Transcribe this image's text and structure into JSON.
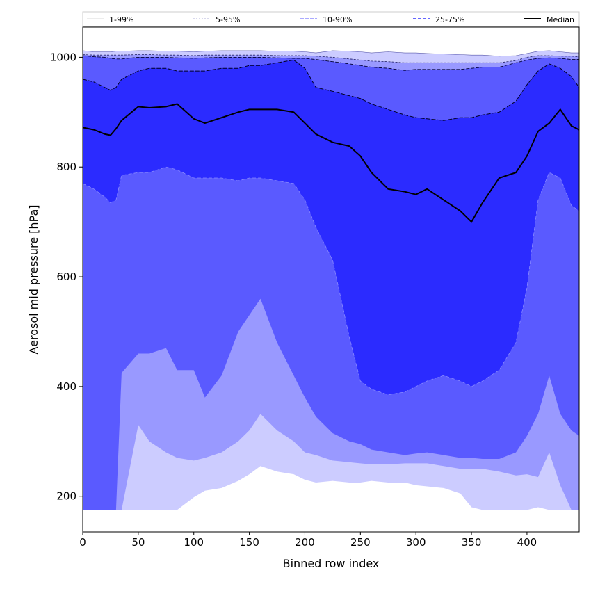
{
  "chart_data": {
    "type": "area",
    "xlabel": "Binned row index",
    "ylabel": "Aerosol mid pressure [hPa]",
    "xlim": [
      0,
      447
    ],
    "ylim": [
      135,
      1055
    ],
    "xticks": [
      0,
      50,
      100,
      150,
      200,
      250,
      300,
      350,
      400
    ],
    "yticks": [
      200,
      400,
      600,
      800,
      1000
    ],
    "grid": false,
    "legend_position": "top (horizontal strip above plot)",
    "colors": {
      "band_1_99": "#ccccff",
      "band_5_95": "#9999ff",
      "band_10_90": "#5a5aff",
      "band_25_75": "#2b2bff",
      "median": "#000000"
    },
    "x": [
      0,
      10,
      20,
      25,
      30,
      35,
      50,
      60,
      75,
      85,
      100,
      110,
      125,
      140,
      150,
      160,
      175,
      190,
      200,
      210,
      225,
      240,
      250,
      260,
      275,
      290,
      300,
      310,
      325,
      340,
      350,
      360,
      375,
      390,
      400,
      410,
      420,
      430,
      440,
      447
    ],
    "series": [
      {
        "name": "1-99%",
        "lower": [
          175,
          175,
          175,
          175,
          175,
          175,
          175,
          175,
          175,
          175,
          198,
          210,
          215,
          228,
          240,
          255,
          245,
          240,
          230,
          225,
          228,
          225,
          225,
          228,
          225,
          225,
          220,
          218,
          215,
          205,
          180,
          175,
          175,
          175,
          175,
          180,
          175,
          175,
          175,
          175
        ],
        "upper": [
          1012,
          1010,
          1010,
          1010,
          1011,
          1011,
          1012,
          1012,
          1011,
          1011,
          1010,
          1011,
          1012,
          1012,
          1012,
          1012,
          1011,
          1011,
          1010,
          1008,
          1012,
          1011,
          1010,
          1008,
          1010,
          1008,
          1008,
          1007,
          1006,
          1005,
          1004,
          1004,
          1002,
          1003,
          1007,
          1011,
          1012,
          1010,
          1008,
          1008
        ]
      },
      {
        "name": "5-95%",
        "lower": [
          175,
          175,
          175,
          175,
          175,
          175,
          330,
          300,
          280,
          270,
          265,
          270,
          280,
          300,
          320,
          350,
          320,
          300,
          280,
          275,
          265,
          262,
          260,
          258,
          258,
          260,
          260,
          260,
          255,
          250,
          250,
          250,
          245,
          238,
          240,
          235,
          280,
          220,
          175,
          175
        ],
        "upper": [
          1005,
          1004,
          1004,
          1004,
          1004,
          1004,
          1005,
          1005,
          1004,
          1004,
          1003,
          1004,
          1004,
          1004,
          1004,
          1004,
          1003,
          1003,
          1003,
          1002,
          1000,
          997,
          995,
          993,
          992,
          990,
          990,
          990,
          990,
          990,
          990,
          990,
          990,
          994,
          1000,
          1003,
          1003,
          1002,
          1002,
          1001
        ]
      },
      {
        "name": "10-90%",
        "lower": [
          175,
          175,
          175,
          175,
          175,
          425,
          460,
          460,
          470,
          430,
          430,
          380,
          420,
          500,
          530,
          560,
          480,
          420,
          380,
          345,
          315,
          300,
          295,
          285,
          280,
          275,
          278,
          280,
          275,
          270,
          270,
          268,
          268,
          280,
          310,
          350,
          420,
          350,
          320,
          310
        ],
        "upper": [
          1003,
          1001,
          1000,
          998,
          997,
          997,
          1000,
          1000,
          1000,
          999,
          998,
          999,
          1000,
          1000,
          1000,
          1000,
          999,
          998,
          998,
          996,
          992,
          988,
          985,
          982,
          980,
          976,
          978,
          978,
          978,
          978,
          980,
          982,
          982,
          990,
          995,
          998,
          999,
          998,
          996,
          996
        ]
      },
      {
        "name": "25-75%",
        "lower": [
          770,
          760,
          745,
          735,
          740,
          785,
          790,
          790,
          800,
          795,
          780,
          780,
          780,
          775,
          780,
          780,
          775,
          770,
          740,
          690,
          630,
          490,
          410,
          395,
          385,
          390,
          400,
          410,
          420,
          410,
          400,
          410,
          430,
          480,
          580,
          740,
          790,
          780,
          730,
          720
        ]
      },
      {
        "name": "Median",
        "values": [
          872,
          868,
          860,
          858,
          870,
          885,
          910,
          908,
          910,
          915,
          888,
          880,
          890,
          900,
          905,
          905,
          905,
          900,
          880,
          860,
          845,
          838,
          820,
          790,
          760,
          755,
          750,
          760,
          740,
          720,
          700,
          735,
          780,
          790,
          820,
          865,
          880,
          905,
          875,
          868
        ],
        "upper_band": [
          960,
          955,
          945,
          940,
          945,
          960,
          975,
          980,
          980,
          975,
          975,
          975,
          980,
          980,
          985,
          985,
          990,
          995,
          980,
          945,
          938,
          930,
          925,
          915,
          905,
          895,
          890,
          888,
          885,
          890,
          890,
          895,
          900,
          920,
          950,
          975,
          988,
          980,
          965,
          945
        ]
      }
    ]
  }
}
